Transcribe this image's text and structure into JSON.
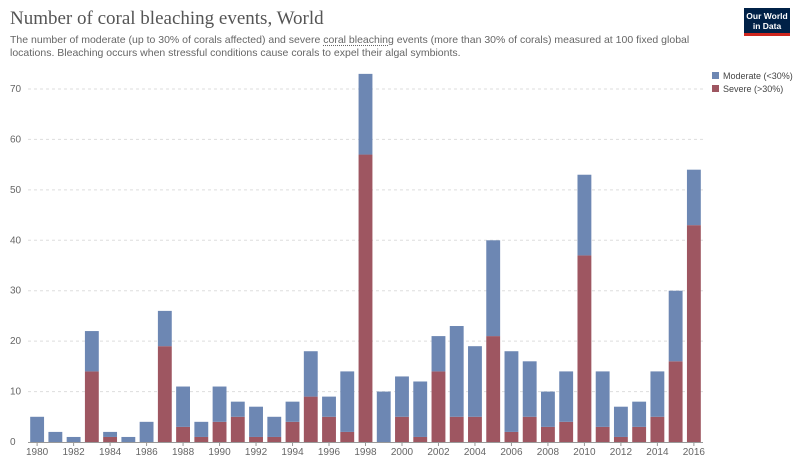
{
  "header": {
    "title": "Number of coral bleaching events, World",
    "subtitle_before": "The number of moderate (up to 30% of corals affected) and severe ",
    "subtitle_link": "coral bleaching",
    "subtitle_after": " events (more than 30% of corals) measured at 100 fixed global locations. Bleaching occurs when stressful conditions cause corals to expel their algal symbionts."
  },
  "logo": {
    "line1": "Our World",
    "line2": "in Data"
  },
  "legend": {
    "items": [
      {
        "label": "Moderate (<30%)",
        "color": "#6d87b3"
      },
      {
        "label": "Severe (>30%)",
        "color": "#9e5661"
      }
    ]
  },
  "chart_data": {
    "type": "bar",
    "stacked": true,
    "title": "Number of coral bleaching events, World",
    "x": [
      1980,
      1981,
      1982,
      1983,
      1984,
      1985,
      1986,
      1987,
      1988,
      1989,
      1990,
      1991,
      1992,
      1993,
      1994,
      1995,
      1996,
      1997,
      1998,
      1999,
      2000,
      2001,
      2002,
      2003,
      2004,
      2005,
      2006,
      2007,
      2008,
      2009,
      2010,
      2011,
      2012,
      2013,
      2014,
      2015,
      2016
    ],
    "series": [
      {
        "name": "Severe (>30%)",
        "color": "#9e5661",
        "values": [
          0,
          0,
          0,
          14,
          1,
          0,
          0,
          19,
          3,
          1,
          4,
          5,
          1,
          1,
          4,
          9,
          5,
          2,
          57,
          0,
          5,
          1,
          14,
          5,
          5,
          21,
          2,
          5,
          3,
          4,
          37,
          3,
          1,
          3,
          5,
          16,
          43
        ]
      },
      {
        "name": "Moderate (<30%)",
        "color": "#6d87b3",
        "values": [
          5,
          2,
          1,
          8,
          1,
          1,
          4,
          7,
          8,
          3,
          7,
          3,
          6,
          4,
          4,
          9,
          4,
          12,
          16,
          10,
          8,
          11,
          7,
          18,
          14,
          19,
          16,
          11,
          7,
          10,
          16,
          11,
          6,
          5,
          9,
          14,
          11
        ]
      }
    ],
    "x_tick_labels": [
      "1980",
      "1982",
      "1984",
      "1986",
      "1988",
      "1990",
      "1992",
      "1994",
      "1996",
      "1998",
      "2000",
      "2002",
      "2004",
      "2006",
      "2008",
      "2010",
      "2012",
      "2014",
      "2016"
    ],
    "y_tick_labels": [
      "0",
      "10",
      "20",
      "30",
      "40",
      "50",
      "60",
      "70"
    ],
    "ylim": [
      0,
      75
    ],
    "grid": "horizontal dashed",
    "legend_position": "top-right"
  }
}
